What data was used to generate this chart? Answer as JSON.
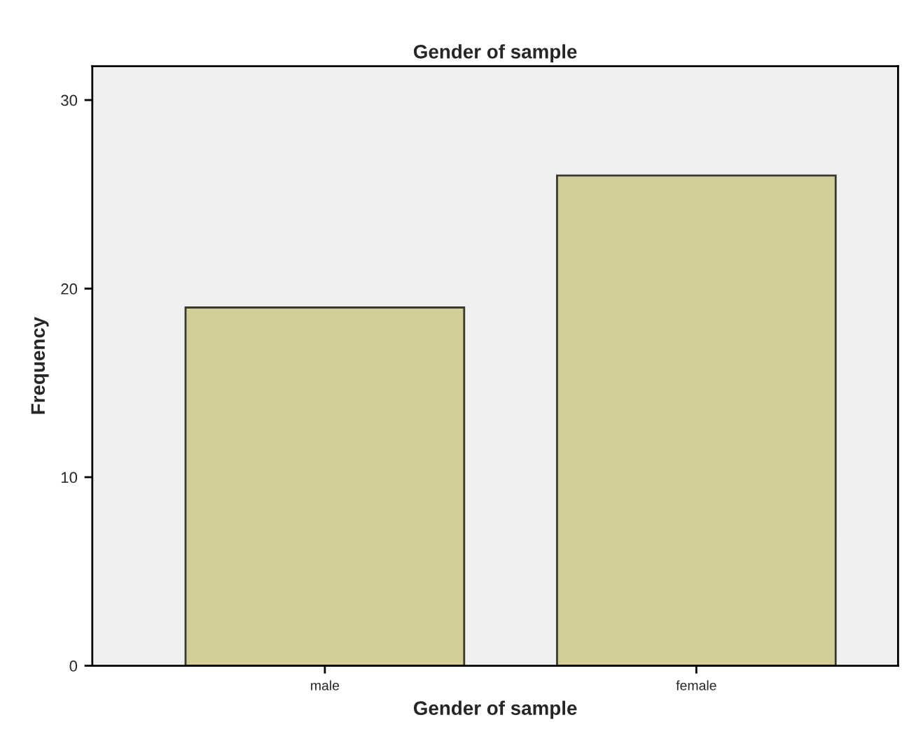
{
  "chart_data": {
    "type": "bar",
    "title": "Gender of sample",
    "xlabel": "Gender of sample",
    "ylabel": "Frequency",
    "categories": [
      "male",
      "female"
    ],
    "values": [
      19,
      26
    ],
    "color": "#d3ce97",
    "ylim": [
      0,
      31.8
    ],
    "yticks": [
      0,
      10,
      20,
      30
    ],
    "grid": false
  }
}
